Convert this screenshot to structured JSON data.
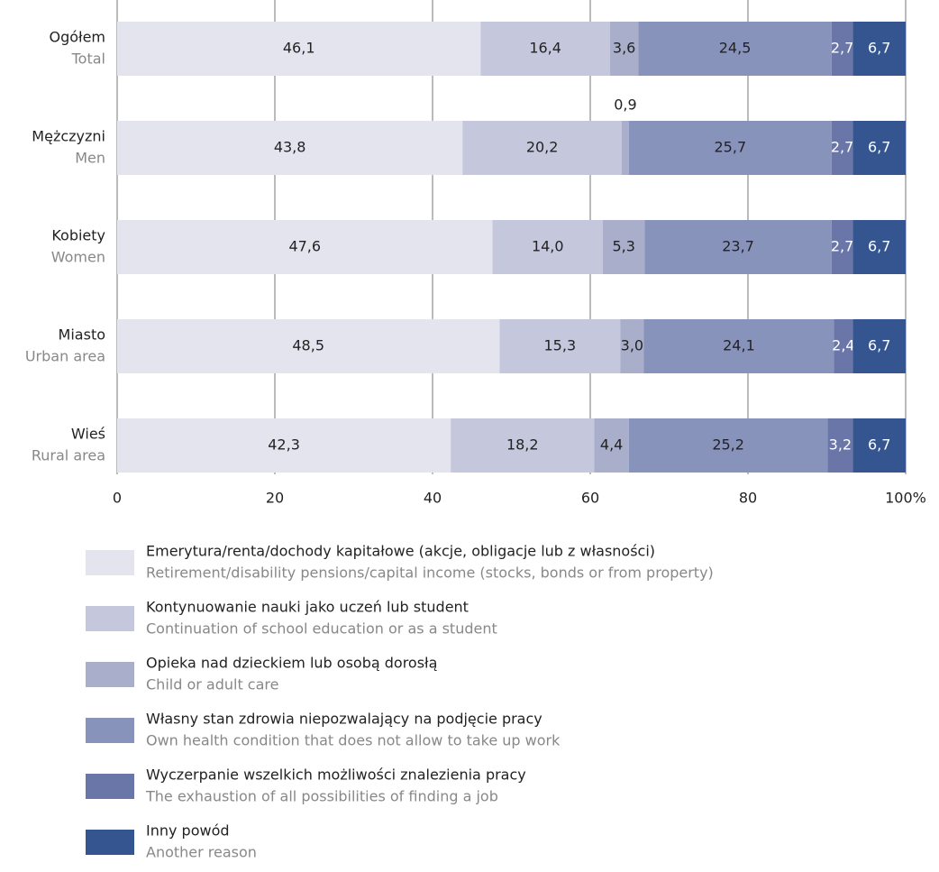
{
  "chart_data": {
    "type": "stacked-barh",
    "categories": [
      "Ogółem",
      "Mężczyzni",
      "Kobiety",
      "Miasto",
      "Wieś"
    ],
    "category_subtitles": [
      "Total",
      "Men",
      "Women",
      "Urban area",
      "Rural area"
    ],
    "series": [
      {
        "name": "Emerytura/renta/dochody kapitałowe (akcje, obligacje lub z własności)",
        "name_en": "Retirement/disability pensions/capital income (stocks, bonds or from property)",
        "color": "#e4e4ef",
        "values": [
          46.1,
          43.8,
          47.6,
          48.5,
          42.3
        ],
        "value_labels": [
          "46,1",
          "43,8",
          "47,6",
          "48,5",
          "42,3"
        ]
      },
      {
        "name": "Kontynuowanie nauki jako uczeń lub student",
        "name_en": "Continuation of school education or as a student",
        "color": "#c5c7dc",
        "values": [
          16.4,
          20.2,
          14.0,
          15.3,
          18.2
        ],
        "value_labels": [
          "16,4",
          "20,2",
          "14,0",
          "15,3",
          "18,2"
        ]
      },
      {
        "name": "Opieka nad dzieckiem lub osobą dorosłą",
        "name_en": "Child or adult care",
        "color": "#a9aecb",
        "values": [
          3.6,
          0.9,
          5.3,
          3.0,
          4.4
        ],
        "value_labels": [
          "3,6",
          "0,9",
          "5,3",
          "3,0",
          "4,4"
        ]
      },
      {
        "name": "Własny stan zdrowia niepozwalający na podjęcie pracy",
        "name_en": "Own health condition that does not allow to take up work",
        "color": "#8893bc",
        "values": [
          24.5,
          25.7,
          23.7,
          24.1,
          25.2
        ],
        "value_labels": [
          "24,5",
          "25,7",
          "23,7",
          "24,1",
          "25,2"
        ]
      },
      {
        "name": "Wyczerpanie wszelkich możliwości znalezienia pracy",
        "name_en": "The exhaustion of all possibilities of finding a job",
        "color": "#6a76a8",
        "values": [
          2.7,
          2.7,
          2.7,
          2.4,
          3.2
        ],
        "value_labels": [
          "2,7",
          "2,7",
          "2,7",
          "2,4",
          "3,2"
        ]
      },
      {
        "name": "Inny powód",
        "name_en": "Another reason",
        "color": "#34558f",
        "values": [
          6.7,
          6.7,
          6.7,
          6.7,
          6.7
        ],
        "value_labels": [
          "6,7",
          "6,7",
          "6,7",
          "6,7",
          "6,7"
        ]
      }
    ],
    "xlim": [
      0,
      100
    ],
    "xticks": [
      0,
      20,
      40,
      60,
      80,
      {
        "value": 100,
        "label": "100%"
      }
    ],
    "grid": true
  }
}
